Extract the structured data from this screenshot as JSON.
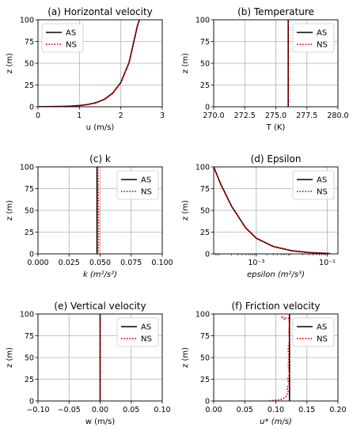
{
  "chart_data": [
    {
      "type": "line",
      "title": "(a) Horizontal velocity",
      "xlabel": "u (m/s)",
      "ylabel": "z (m)",
      "xlim": [
        0,
        3
      ],
      "ylim": [
        0,
        100
      ],
      "xscale": "linear",
      "xticks": [
        0,
        1,
        2,
        3
      ],
      "xtick_labels": [
        "0",
        "1",
        "2",
        "3"
      ],
      "yticks": [
        0,
        25,
        50,
        75,
        100
      ],
      "ytick_labels": [
        "0",
        "25",
        "50",
        "75",
        "100"
      ],
      "grid": true,
      "legend": "top-left",
      "series": [
        {
          "name": "AS",
          "color": "#000000",
          "style": "solid",
          "x": [
            0.0,
            0.2,
            0.4,
            0.6,
            0.8,
            1.0,
            1.2,
            1.4,
            1.6,
            1.8,
            2.0,
            2.2,
            2.4,
            2.45
          ],
          "y": [
            0.1,
            0.15,
            0.25,
            0.45,
            0.8,
            1.4,
            2.6,
            4.7,
            8.5,
            15.5,
            28,
            51,
            93,
            100
          ]
        },
        {
          "name": "NS",
          "color": "#ff0000",
          "style": "dotted",
          "x": [
            0.0,
            0.2,
            0.4,
            0.6,
            0.8,
            1.0,
            1.2,
            1.4,
            1.6,
            1.8,
            2.0,
            2.2,
            2.4,
            2.45
          ],
          "y": [
            0.1,
            0.15,
            0.25,
            0.45,
            0.8,
            1.4,
            2.6,
            4.7,
            8.5,
            15.5,
            28,
            51,
            93,
            100
          ]
        }
      ]
    },
    {
      "type": "line",
      "title": "(b) Temperature",
      "xlabel": "T (K)",
      "ylabel": "z (m)",
      "xlim": [
        270,
        280
      ],
      "ylim": [
        0,
        100
      ],
      "xscale": "linear",
      "xticks": [
        270,
        272.5,
        275,
        277.5,
        280
      ],
      "xtick_labels": [
        "270.0",
        "272.5",
        "275.0",
        "277.5",
        "280.0"
      ],
      "yticks": [
        0,
        25,
        50,
        75,
        100
      ],
      "ytick_labels": [
        "0",
        "25",
        "50",
        "75",
        "100"
      ],
      "grid": true,
      "legend": "top-right",
      "series": [
        {
          "name": "AS",
          "color": "#000000",
          "style": "solid",
          "x": [
            276,
            276
          ],
          "y": [
            0,
            100
          ]
        },
        {
          "name": "NS",
          "color": "#ff0000",
          "style": "dotted",
          "x": [
            276,
            276
          ],
          "y": [
            0,
            100
          ]
        }
      ]
    },
    {
      "type": "line",
      "title": "(c) k",
      "xlabel": "k (m²/s²)",
      "ylabel": "z (m)",
      "xlim": [
        0,
        0.1
      ],
      "ylim": [
        0,
        100
      ],
      "xscale": "linear",
      "xticks": [
        0,
        0.025,
        0.05,
        0.075,
        0.1
      ],
      "xtick_labels": [
        "0.000",
        "0.025",
        "0.050",
        "0.075",
        "0.100"
      ],
      "yticks": [
        0,
        25,
        50,
        75,
        100
      ],
      "ytick_labels": [
        "0",
        "25",
        "50",
        "75",
        "100"
      ],
      "grid": true,
      "legend": "top-right",
      "series": [
        {
          "name": "AS",
          "color": "#000000",
          "style": "solid",
          "x": [
            0.0475,
            0.0475
          ],
          "y": [
            0,
            100
          ]
        },
        {
          "name": "NS",
          "color": "#ff0000",
          "style": "dotted",
          "x": [
            0.048,
            0.0485,
            0.0488,
            0.0488,
            0.0486,
            0.0482
          ],
          "y": [
            0,
            5,
            10,
            30,
            60,
            100
          ]
        }
      ]
    },
    {
      "type": "line",
      "title": "(d) Epsilon",
      "xlabel": "epsilon (m²/s³)",
      "ylabel": "z (m)",
      "xlim": [
        6.31e-05,
        0.2
      ],
      "ylim": [
        0,
        100
      ],
      "xscale": "log",
      "xticks": [
        0.001,
        0.1
      ],
      "xtick_labels": [
        "10⁻³",
        "10⁻¹"
      ],
      "yticks": [
        0,
        25,
        50,
        75,
        100
      ],
      "ytick_labels": [
        "0",
        "25",
        "50",
        "75",
        "100"
      ],
      "grid": true,
      "legend": "top-right",
      "series": [
        {
          "name": "AS",
          "color": "#000000",
          "style": "solid",
          "x": [
            6.31e-05,
            0.0001,
            0.0002,
            0.0005,
            0.001,
            0.003,
            0.01,
            0.03,
            0.1,
            0.12
          ],
          "y": [
            100,
            80,
            55,
            30,
            18,
            8.5,
            3.6,
            1.6,
            0.5,
            0.3
          ]
        },
        {
          "name": "NS",
          "color": "#ff0000",
          "style": "dotted",
          "x": [
            6.31e-05,
            0.0001,
            0.0002,
            0.0005,
            0.001,
            0.003,
            0.01,
            0.03,
            0.1,
            0.12
          ],
          "y": [
            100,
            80,
            55,
            30,
            18,
            8.5,
            3.6,
            1.6,
            0.5,
            0.3
          ]
        }
      ]
    },
    {
      "type": "line",
      "title": "(e) Vertical velocity",
      "xlabel": "w (m/s)",
      "ylabel": "z (m)",
      "xlim": [
        -0.1,
        0.1
      ],
      "ylim": [
        0,
        100
      ],
      "xscale": "linear",
      "xticks": [
        -0.1,
        -0.05,
        0,
        0.05,
        0.1
      ],
      "xtick_labels": [
        "−0.10",
        "−0.05",
        "0.00",
        "0.05",
        "0.10"
      ],
      "yticks": [
        0,
        25,
        50,
        75,
        100
      ],
      "ytick_labels": [
        "0",
        "25",
        "50",
        "75",
        "100"
      ],
      "grid": true,
      "legend": "top-right",
      "series": [
        {
          "name": "AS",
          "color": "#000000",
          "style": "solid",
          "x": [
            0,
            0
          ],
          "y": [
            0,
            100
          ]
        },
        {
          "name": "NS",
          "color": "#ff0000",
          "style": "dotted",
          "x": [
            0,
            0
          ],
          "y": [
            0,
            100
          ]
        }
      ]
    },
    {
      "type": "line",
      "title": "(f) Friction velocity",
      "xlabel": "u* (m/s)",
      "ylabel": "z (m)",
      "xlim": [
        0,
        0.2
      ],
      "ylim": [
        0,
        100
      ],
      "xscale": "linear",
      "xticks": [
        0,
        0.05,
        0.1,
        0.15,
        0.2
      ],
      "xtick_labels": [
        "0.00",
        "0.05",
        "0.10",
        "0.15",
        "0.20"
      ],
      "yticks": [
        0,
        25,
        50,
        75,
        100
      ],
      "ytick_labels": [
        "0",
        "25",
        "50",
        "75",
        "100"
      ],
      "grid": true,
      "legend": "top-right",
      "series": [
        {
          "name": "AS",
          "color": "#000000",
          "style": "solid",
          "x": [
            0.122,
            0.122
          ],
          "y": [
            0,
            100
          ]
        },
        {
          "name": "NS",
          "color": "#ff0000",
          "style": "dotted",
          "x": [
            0.09,
            0.1,
            0.11,
            0.116,
            0.12,
            0.118,
            0.121,
            0.119,
            0.122,
            0.12,
            0.121,
            0.12,
            0.122,
            0.121,
            0.122,
            0.12,
            0.111,
            0.114,
            0.117
          ],
          "y": [
            0,
            1,
            2,
            5,
            10,
            15,
            20,
            25,
            30,
            40,
            50,
            60,
            70,
            80,
            90,
            95,
            96,
            94,
            95
          ]
        }
      ]
    }
  ]
}
